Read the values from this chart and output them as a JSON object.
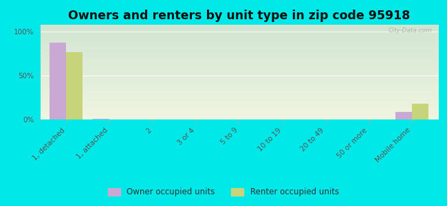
{
  "title": "Owners and renters by unit type in zip code 95918",
  "categories": [
    "1, detached",
    "1, attached",
    "2",
    "3 or 4",
    "5 to 9",
    "10 to 19",
    "20 to 49",
    "50 or more",
    "Mobile home"
  ],
  "owner_values": [
    88,
    1,
    0,
    0,
    0,
    0,
    0,
    0,
    9
  ],
  "renter_values": [
    77,
    0,
    0,
    0,
    0,
    0,
    0,
    0,
    18
  ],
  "owner_color": "#c9a8d4",
  "renter_color": "#c8d47a",
  "background_color": "#00e8e8",
  "yticks": [
    0,
    50,
    100
  ],
  "ylim": [
    0,
    108
  ],
  "ylabel_labels": [
    "0%",
    "50%",
    "100%"
  ],
  "watermark": "City-Data.com",
  "legend_owner": "Owner occupied units",
  "legend_renter": "Renter occupied units",
  "bar_width": 0.38,
  "title_fontsize": 12.5,
  "tick_fontsize": 7.5,
  "legend_fontsize": 8.5
}
